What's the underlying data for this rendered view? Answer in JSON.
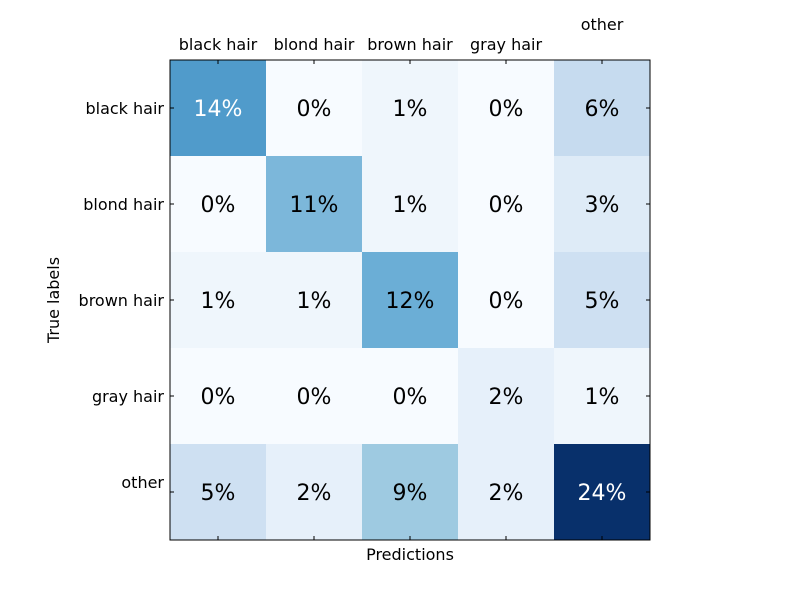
{
  "chart_data": {
    "type": "heatmap",
    "title": "",
    "xlabel": "Predictions",
    "ylabel": "True labels",
    "x_categories": [
      "black hair",
      "blond hair",
      "brown hair",
      "gray hair",
      "other"
    ],
    "y_categories": [
      "black hair",
      "blond hair",
      "brown hair",
      "gray hair",
      "other"
    ],
    "value_unit": "%",
    "values": [
      [
        14,
        0,
        1,
        0,
        6
      ],
      [
        0,
        11,
        1,
        0,
        3
      ],
      [
        1,
        1,
        12,
        0,
        5
      ],
      [
        0,
        0,
        0,
        2,
        1
      ],
      [
        5,
        2,
        9,
        2,
        24
      ]
    ],
    "cell_labels": [
      [
        "14%",
        "0%",
        "1%",
        "0%",
        "6%"
      ],
      [
        "0%",
        "11%",
        "1%",
        "0%",
        "3%"
      ],
      [
        "1%",
        "1%",
        "12%",
        "0%",
        "5%"
      ],
      [
        "0%",
        "0%",
        "0%",
        "2%",
        "1%"
      ],
      [
        "5%",
        "2%",
        "9%",
        "2%",
        "24%"
      ]
    ],
    "colormap": "Blues",
    "color_range": [
      0,
      24
    ],
    "colors": {
      "low": "#f7fbff",
      "high": "#08306b",
      "text_dark": "#000000",
      "text_light": "#ffffff"
    },
    "x_tick_position": "top",
    "grid": false
  }
}
